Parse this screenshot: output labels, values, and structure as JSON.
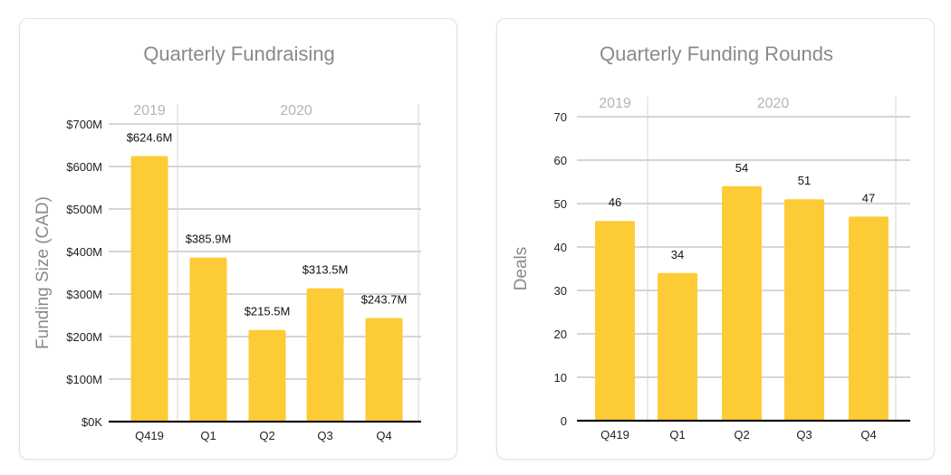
{
  "colors": {
    "bar": "#FDCB36",
    "grid": "#c7c7c7"
  },
  "chart_data": [
    {
      "type": "bar",
      "title": "Quarterly Fundraising",
      "xlabel": "",
      "ylabel": "Funding Size (CAD)",
      "categories": [
        "Q419",
        "Q1",
        "Q2",
        "Q3",
        "Q4"
      ],
      "groups": [
        {
          "label": "2019",
          "start": 0,
          "end": 0
        },
        {
          "label": "2020",
          "start": 1,
          "end": 4
        }
      ],
      "values": [
        624.6,
        385.9,
        215.5,
        313.5,
        243.7
      ],
      "value_labels": [
        "$624.6M",
        "$385.9M",
        "$215.5M",
        "$313.5M",
        "$243.7M"
      ],
      "ylim": [
        0,
        700
      ],
      "yticks": [
        0,
        100,
        200,
        300,
        400,
        500,
        600,
        700
      ],
      "ytick_labels": [
        "$0K",
        "$100M",
        "$200M",
        "$300M",
        "$400M",
        "$500M",
        "$600M",
        "$700M"
      ],
      "grid": true
    },
    {
      "type": "bar",
      "title": "Quarterly Funding Rounds",
      "xlabel": "",
      "ylabel": "Deals",
      "categories": [
        "Q419",
        "Q1",
        "Q2",
        "Q3",
        "Q4"
      ],
      "groups": [
        {
          "label": "2019",
          "start": 0,
          "end": 0
        },
        {
          "label": "2020",
          "start": 1,
          "end": 4
        }
      ],
      "values": [
        46,
        34,
        54,
        51,
        47
      ],
      "value_labels": [
        "46",
        "34",
        "54",
        "51",
        "47"
      ],
      "ylim": [
        0,
        70
      ],
      "yticks": [
        0,
        10,
        20,
        30,
        40,
        50,
        60,
        70
      ],
      "ytick_labels": [
        "0",
        "10",
        "20",
        "30",
        "40",
        "50",
        "60",
        "70"
      ],
      "grid": true
    }
  ]
}
